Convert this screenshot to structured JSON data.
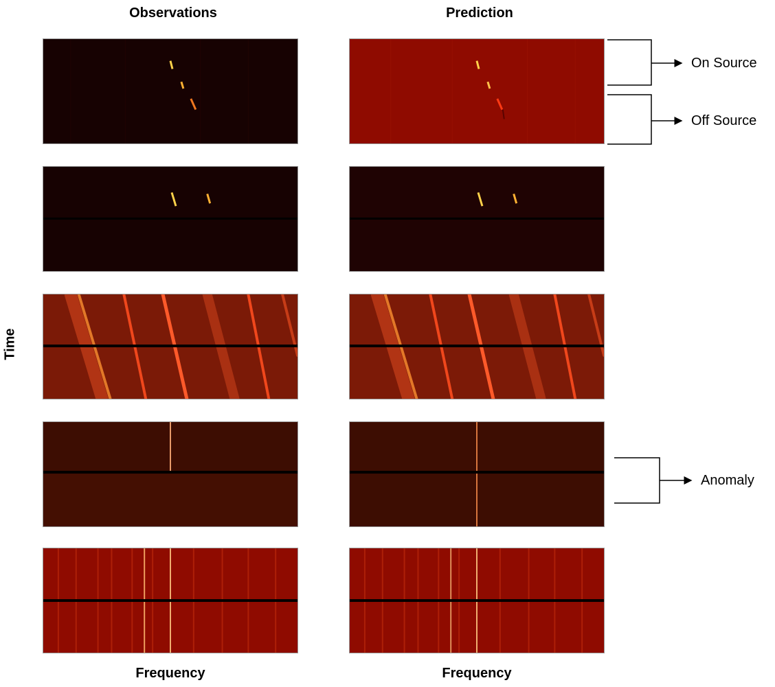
{
  "columns": {
    "left_title": "Observations",
    "right_title": "Prediction"
  },
  "axis_labels": {
    "y": "Time",
    "x_left": "Frequency",
    "x_right": "Frequency"
  },
  "annotations": {
    "on_source": "On Source",
    "off_source": "Off Source",
    "anomaly": "Anomaly"
  },
  "rows": [
    {
      "row": 1,
      "style": "signal-sparse"
    },
    {
      "row": 2,
      "style": "signal-pair"
    },
    {
      "row": 3,
      "style": "drifting-bands"
    },
    {
      "row": 4,
      "style": "single-line"
    },
    {
      "row": 5,
      "style": "vertical-lines"
    }
  ],
  "colors": {
    "dark_background": "#170202",
    "dark_brown": "#3d0d02",
    "red_background": "#8f0b00",
    "band_orange": "#f0471c",
    "signal_yellow": "#ffd24a",
    "signal_red": "#e1260b",
    "separator": "#000000"
  }
}
